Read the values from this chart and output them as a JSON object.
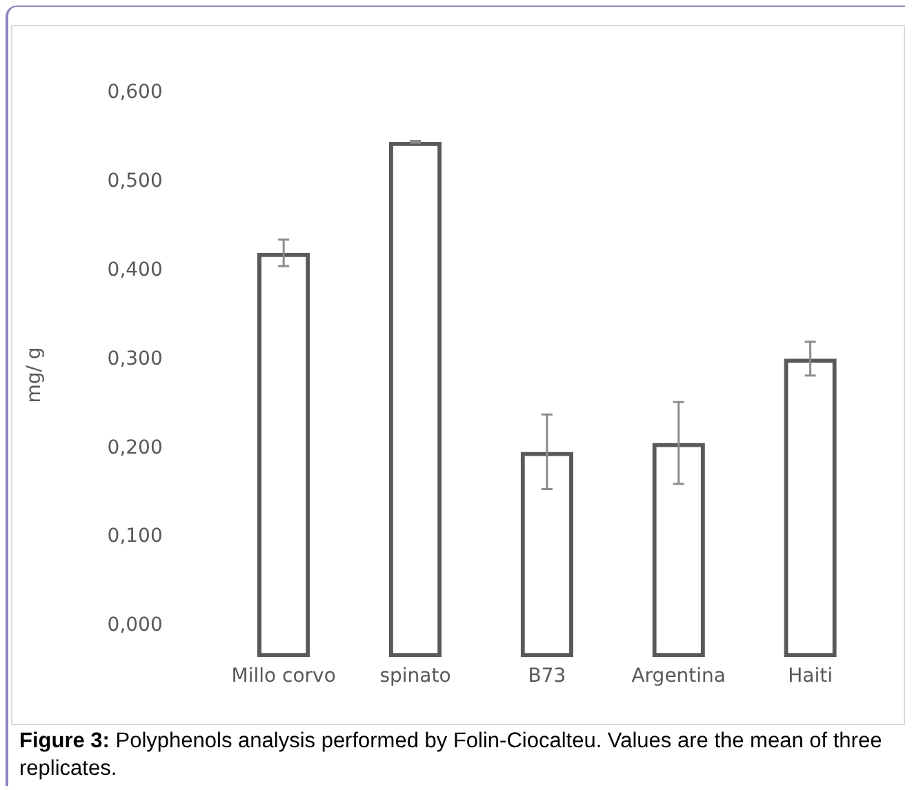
{
  "chart_data": {
    "type": "bar",
    "ylabel": "mg/ g",
    "categories": [
      "Millo corvo",
      "spinato",
      "B73",
      "Argentina",
      "Haiti"
    ],
    "values": [
      0.455,
      0.58,
      0.231,
      0.241,
      0.336
    ],
    "base": [
      -0.035,
      -0.035,
      -0.035,
      -0.035,
      -0.035
    ],
    "errors": [
      0.015,
      0.001,
      0.042,
      0.046,
      0.019
    ],
    "color": "#595959",
    "ylim": [
      -0.035,
      0.6
    ],
    "yticks": [
      {
        "value": 0,
        "label": "0,000"
      },
      {
        "value": 0.1,
        "label": "0,100"
      },
      {
        "value": 0.2,
        "label": "0,200"
      },
      {
        "value": 0.3,
        "label": "0,300"
      },
      {
        "value": 0.4,
        "label": "0,400"
      },
      {
        "value": 0.5,
        "label": "0,500"
      },
      {
        "value": 0.6,
        "label": "0,600"
      }
    ],
    "grid": false,
    "legend": false,
    "annotations": [
      "Figure 3: Polyphenols analysis performed by Folin-Ciocalteu. Values are the mean of three replicates."
    ]
  }
}
